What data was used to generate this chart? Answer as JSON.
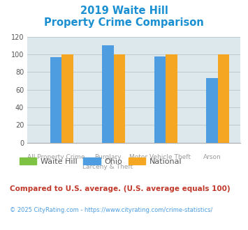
{
  "title_line1": "2019 Waite Hill",
  "title_line2": "Property Crime Comparison",
  "title_color": "#1a8fd1",
  "categories_top": [
    "",
    "Burglary",
    "Motor Vehicle Theft",
    ""
  ],
  "categories_bot": [
    "All Property Crime",
    "Larceny & Theft",
    "",
    "Arson"
  ],
  "series": {
    "Waite Hill": {
      "values": [
        0,
        0,
        0,
        0
      ],
      "color": "#7dc242"
    },
    "Ohio": {
      "values": [
        97,
        110,
        98,
        73
      ],
      "color": "#4d9de0"
    },
    "National": {
      "values": [
        100,
        100,
        100,
        100
      ],
      "color": "#f5a623"
    }
  },
  "ylim": [
    0,
    120
  ],
  "yticks": [
    0,
    20,
    40,
    60,
    80,
    100,
    120
  ],
  "grid_color": "#bbcccc",
  "plot_bg": "#dde8ec",
  "footnote1": "Compared to U.S. average. (U.S. average equals 100)",
  "footnote2": "© 2025 CityRating.com - https://www.cityrating.com/crime-statistics/",
  "footnote1_color": "#c0392b",
  "footnote2_color": "#4d9de0",
  "legend_labels": [
    "Waite Hill",
    "Ohio",
    "National"
  ],
  "legend_colors": [
    "#7dc242",
    "#4d9de0",
    "#f5a623"
  ],
  "bar_width": 0.22
}
